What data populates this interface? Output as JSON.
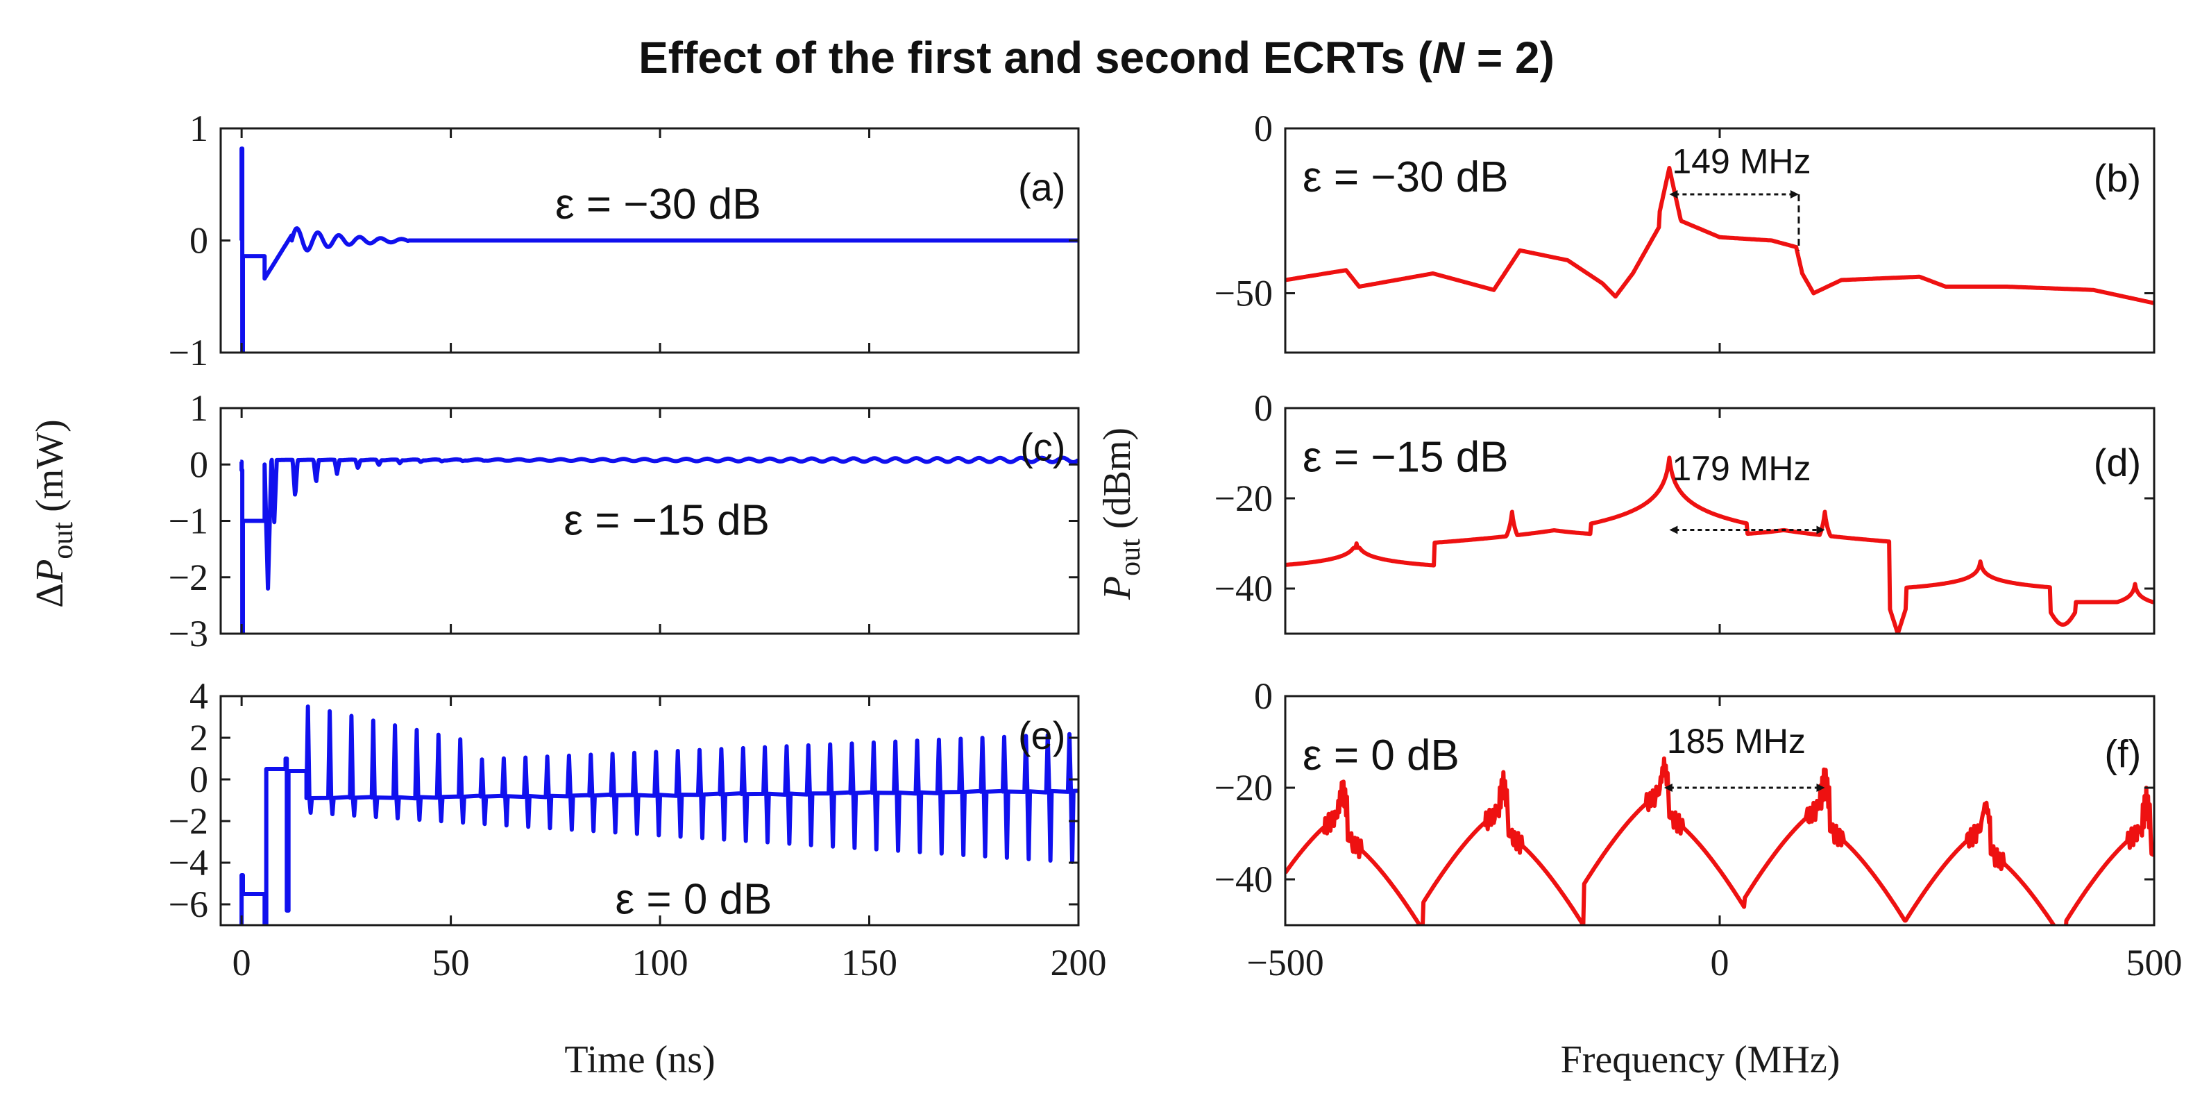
{
  "title_parts": [
    "Effect of the first and second ECRTs (",
    "N",
    " = 2)"
  ],
  "colors": {
    "time_trace": "#1010ee",
    "spectrum_trace": "#ee1111",
    "axis": "#1a1a1a"
  },
  "shared_labels": {
    "time_xlabel": "Time (ns)",
    "freq_xlabel": "Frequency (MHz)",
    "left_ylabel": {
      "prefix": "Δ",
      "var": "P",
      "sub": "out",
      "unit": " (mW)"
    },
    "right_ylabel": {
      "var": "P",
      "sub": "out",
      "unit": " (dBm)"
    }
  },
  "chart_data": [
    {
      "id": "a",
      "type": "line",
      "letter": "(a)",
      "domain": "time",
      "epsilon_label": "ε = −30 dB",
      "xlim": [
        -5,
        200
      ],
      "ylim": [
        -1,
        1
      ],
      "xticks": [
        0,
        50,
        100,
        150,
        200
      ],
      "xtick_labels": [
        "",
        "",
        "",
        "",
        ""
      ],
      "yticks": [
        -1,
        0,
        1
      ],
      "ytick_labels": [
        "−1",
        "0",
        "1"
      ],
      "model": {
        "spike_at": 0,
        "spike_top": 0.82,
        "spike_bottom": -1.0,
        "plateau": -0.14,
        "plateau_until": 5.5,
        "dip": -0.34,
        "ring_amplitude": 0.12,
        "ring_period": 5.0,
        "ring_decay": 12.0,
        "ring_end": 40.0,
        "final": 0
      }
    },
    {
      "id": "b",
      "type": "line",
      "letter": "(b)",
      "domain": "freq",
      "epsilon_label": "ε = −30 dB",
      "xlim": [
        -500,
        500
      ],
      "ylim": [
        -68,
        0
      ],
      "xticks": [
        -500,
        0,
        500
      ],
      "xtick_labels": [
        "",
        "",
        ""
      ],
      "yticks": [
        -50,
        0
      ],
      "ytick_labels": [
        "−50",
        "0"
      ],
      "spacing_label": "149 MHz",
      "marker_from": -58,
      "marker_to": 91,
      "peaks": [
        {
          "x": -58,
          "y": -12
        },
        {
          "x": -245,
          "y": -37
        }
      ],
      "dips": [
        {
          "x": -415,
          "y": -48
        },
        {
          "x": -260,
          "y": -49
        },
        {
          "x": -120,
          "y": -51
        },
        {
          "x": 108,
          "y": -50
        }
      ],
      "baseline": [
        [
          -500,
          -46
        ],
        [
          -430,
          -43
        ],
        [
          -415,
          -48
        ],
        [
          -330,
          -44
        ],
        [
          -260,
          -49
        ],
        [
          -230,
          -37
        ],
        [
          -175,
          -40
        ],
        [
          -135,
          -47
        ],
        [
          -120,
          -51
        ],
        [
          -100,
          -44
        ],
        [
          -70,
          -30
        ],
        [
          -58,
          -12
        ],
        [
          -45,
          -28
        ],
        [
          0,
          -33
        ],
        [
          60,
          -34
        ],
        [
          88,
          -36
        ],
        [
          95,
          -44
        ],
        [
          108,
          -50
        ],
        [
          140,
          -46
        ],
        [
          230,
          -45
        ],
        [
          260,
          -48
        ],
        [
          330,
          -48
        ],
        [
          430,
          -49
        ],
        [
          500,
          -53
        ]
      ]
    },
    {
      "id": "c",
      "type": "line",
      "letter": "(c)",
      "domain": "time",
      "epsilon_label": "ε = −15 dB",
      "xlim": [
        -5,
        200
      ],
      "ylim": [
        -3,
        1
      ],
      "xticks": [
        0,
        50,
        100,
        150,
        200
      ],
      "xtick_labels": [
        "",
        "",
        "",
        "",
        ""
      ],
      "yticks": [
        -3,
        -2,
        -1,
        0,
        1
      ],
      "ytick_labels": [
        "−3",
        "−2",
        "−1",
        "0",
        "1"
      ],
      "model": {
        "spike_at": 0,
        "spike_top": -0.1,
        "spike_bottom": -3.0,
        "plateau": -1.0,
        "plateau_until": 5.5,
        "dip": -2.2,
        "ring_amplitude": 0.5,
        "ring_period": 5.0,
        "ring_decay": 10.0,
        "ring_floor": 0.08,
        "final": 0.05
      }
    },
    {
      "id": "d",
      "type": "line",
      "letter": "(d)",
      "domain": "freq",
      "epsilon_label": "ε = −15 dB",
      "xlim": [
        -500,
        500
      ],
      "ylim": [
        -50,
        0
      ],
      "xticks": [
        -500,
        0,
        500
      ],
      "xtick_labels": [
        "",
        "",
        ""
      ],
      "yticks": [
        -40,
        -20,
        0
      ],
      "ytick_labels": [
        "−40",
        "−20",
        "0"
      ],
      "spacing_label": "179 MHz",
      "marker_from": -58,
      "marker_to": 121,
      "peaks": [
        {
          "x": -418,
          "y": -29
        },
        {
          "x": -239,
          "y": -22
        },
        {
          "x": -58,
          "y": -10
        },
        {
          "x": 121,
          "y": -22
        },
        {
          "x": 300,
          "y": -34
        },
        {
          "x": 478,
          "y": -39
        }
      ],
      "baseline_level": -43
    },
    {
      "id": "e",
      "type": "line",
      "letter": "(e)",
      "domain": "time",
      "epsilon_label": "ε = 0 dB",
      "xlim": [
        -5,
        200
      ],
      "ylim": [
        -7,
        4
      ],
      "xticks": [
        0,
        50,
        100,
        150,
        200
      ],
      "xtick_labels": [
        "0",
        "50",
        "100",
        "150",
        "200"
      ],
      "yticks": [
        -6,
        -4,
        -2,
        0,
        2,
        4
      ],
      "ytick_labels": [
        "−6",
        "−4",
        "−2",
        "0",
        "2",
        "4"
      ],
      "model": {
        "spike_at": 0,
        "plateau": -5.5,
        "plateau_until": 5.5,
        "step_high": 0.5,
        "pulse_period": 5.2,
        "baseline": -0.9,
        "pulse_up_start": 3.5,
        "pulse_up_end": 1.8,
        "pulse_down_start": -1.6,
        "pulse_down_end": -4.0
      }
    },
    {
      "id": "f",
      "type": "line",
      "letter": "(f)",
      "domain": "freq",
      "epsilon_label": "ε = 0 dB",
      "xlim": [
        -500,
        500
      ],
      "ylim": [
        -50,
        0
      ],
      "xticks": [
        -500,
        0,
        500
      ],
      "xtick_labels": [
        "−500",
        "0",
        "500"
      ],
      "yticks": [
        -40,
        -20,
        0
      ],
      "ytick_labels": [
        "−40",
        "−20",
        "0"
      ],
      "spacing_label": "185 MHz",
      "marker_from": -64,
      "marker_to": 121,
      "peaks": [
        {
          "x": -434,
          "y": -20
        },
        {
          "x": -249,
          "y": -19
        },
        {
          "x": -64,
          "y": -15
        },
        {
          "x": 121,
          "y": -18
        },
        {
          "x": 306,
          "y": -23
        },
        {
          "x": 491,
          "y": -23
        }
      ]
    }
  ]
}
